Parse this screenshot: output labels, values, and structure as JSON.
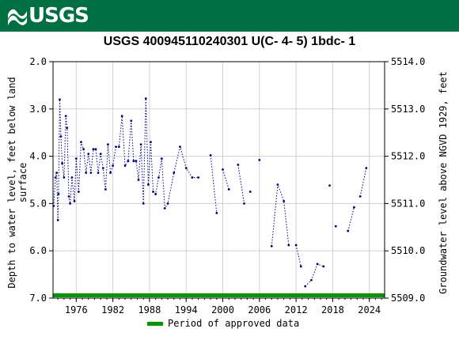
{
  "header": {
    "logo_text": "USGS",
    "banner_color": "#006F41"
  },
  "chart_data": {
    "type": "scatter",
    "title": "USGS 400945110240301 U(C- 4- 5) 1bdc- 1",
    "ylabel_left": "Depth to water level, feet below land surface",
    "ylabel_left_lines": [
      "Depth to water level, feet below land",
      "surface"
    ],
    "ylabel_right": "Groundwater level above NGVD 1929, feet",
    "x_range": [
      1972.2,
      2026.5
    ],
    "y_left_range": [
      2.0,
      7.0
    ],
    "y_left_inverted": true,
    "y_right_range": [
      5509.0,
      5514.0
    ],
    "x_ticks": [
      1976,
      1982,
      1988,
      1994,
      2000,
      2006,
      2012,
      2018,
      2024
    ],
    "y_left_ticks": [
      "2.0",
      "3.0",
      "4.0",
      "5.0",
      "6.0",
      "7.0"
    ],
    "y_right_ticks": [
      "5514.0",
      "5513.0",
      "5512.0",
      "5511.0",
      "5510.0",
      "5509.0"
    ],
    "line_color": "#00008B",
    "approved_color": "#009900",
    "legend": {
      "label": "Period of approved data",
      "placement": "bottom-center"
    },
    "approved_period": [
      1972.2,
      2026.5
    ],
    "series": [
      {
        "segments": [
          [
            [
              1972.3,
              5.05
            ],
            [
              1972.6,
              4.45
            ],
            [
              1972.8,
              4.35
            ],
            [
              1973.0,
              5.35
            ],
            [
              1973.1,
              4.8
            ],
            [
              1973.3,
              2.8
            ],
            [
              1973.5,
              3.58
            ],
            [
              1973.7,
              4.15
            ],
            [
              1974.0,
              4.45
            ],
            [
              1974.3,
              3.15
            ],
            [
              1974.5,
              3.4
            ],
            [
              1974.8,
              4.85
            ],
            [
              1975.0,
              5.0
            ],
            [
              1975.3,
              4.45
            ],
            [
              1975.7,
              4.95
            ],
            [
              1976.0,
              4.05
            ],
            [
              1976.4,
              4.75
            ],
            [
              1976.8,
              3.7
            ],
            [
              1977.2,
              3.85
            ],
            [
              1977.6,
              4.35
            ],
            [
              1978.0,
              3.95
            ],
            [
              1978.4,
              4.35
            ],
            [
              1978.8,
              3.85
            ],
            [
              1979.2,
              3.85
            ],
            [
              1979.6,
              4.35
            ],
            [
              1980.0,
              3.95
            ],
            [
              1980.4,
              4.25
            ],
            [
              1980.8,
              4.7
            ],
            [
              1981.2,
              3.75
            ],
            [
              1981.6,
              4.35
            ],
            [
              1982.0,
              4.2
            ],
            [
              1982.5,
              3.8
            ],
            [
              1983.0,
              3.8
            ],
            [
              1983.5,
              3.15
            ],
            [
              1984.0,
              4.2
            ],
            [
              1984.5,
              4.1
            ],
            [
              1985.0,
              3.25
            ],
            [
              1985.4,
              4.1
            ],
            [
              1985.8,
              4.1
            ],
            [
              1986.2,
              4.5
            ],
            [
              1986.6,
              3.75
            ],
            [
              1987.0,
              5.0
            ],
            [
              1987.4,
              2.78
            ],
            [
              1987.8,
              4.6
            ],
            [
              1988.2,
              3.7
            ],
            [
              1988.6,
              4.75
            ],
            [
              1989.0,
              4.8
            ],
            [
              1989.5,
              4.45
            ],
            [
              1990.0,
              4.05
            ],
            [
              1990.5,
              5.1
            ],
            [
              1991.0,
              5.0
            ],
            [
              1992.0,
              4.35
            ],
            [
              1993.0,
              3.8
            ],
            [
              1994.0,
              4.25
            ],
            [
              1995.0,
              4.45
            ],
            [
              1996.0,
              4.45
            ]
          ],
          [
            [
              1998.0,
              3.98
            ],
            [
              1999.0,
              5.2
            ]
          ],
          [
            [
              2000.0,
              4.28
            ],
            [
              2001.0,
              4.7
            ]
          ],
          [
            [
              2002.5,
              4.18
            ],
            [
              2003.5,
              5.0
            ]
          ],
          [
            [
              2004.5,
              4.75
            ]
          ],
          [
            [
              2006.0,
              4.08
            ]
          ],
          [
            [
              2008.0,
              5.9
            ],
            [
              2009.0,
              4.6
            ],
            [
              2010.0,
              4.95
            ],
            [
              2010.8,
              5.88
            ]
          ],
          [
            [
              2012.0,
              5.88
            ],
            [
              2012.8,
              6.33
            ]
          ],
          [
            [
              2013.5,
              6.75
            ],
            [
              2014.5,
              6.62
            ],
            [
              2015.5,
              6.28
            ],
            [
              2016.5,
              6.33
            ]
          ],
          [
            [
              2017.5,
              4.62
            ]
          ],
          [
            [
              2018.5,
              5.48
            ]
          ],
          [
            [
              2020.5,
              5.58
            ],
            [
              2021.5,
              5.08
            ]
          ],
          [
            [
              2022.5,
              4.85
            ],
            [
              2023.5,
              4.25
            ]
          ]
        ]
      }
    ]
  }
}
